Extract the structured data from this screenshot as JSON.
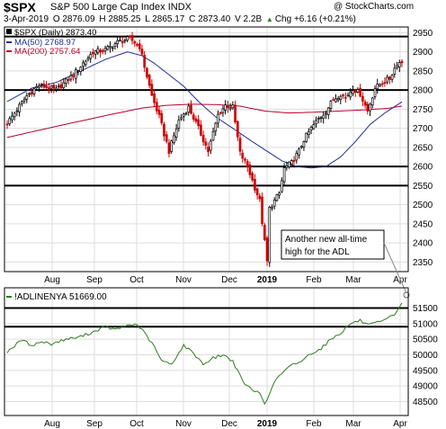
{
  "header": {
    "symbol": "$SPX",
    "description": "S&P 500 Large Cap Index",
    "exchange": "INDX",
    "watermark": "@ StockCharts.com",
    "date": "3-Apr-2019",
    "open": "O 2876.09",
    "high": "H 2885.25",
    "low": "L 2865.17",
    "close": "C 2873.40",
    "volume": "V 2.2B",
    "change": "Chg +6.16 (+0.21%)",
    "change_arrow": "▲"
  },
  "colors": {
    "up": "#000000",
    "down": "#cc0000",
    "ma50": "#1f2f8f",
    "ma200": "#b8002a",
    "adl": "#2e7d1f",
    "panel_border": "#000000",
    "grid": "#dddddd"
  },
  "chart_data": [
    {
      "type": "candlestick",
      "series": [
        {
          "name": "$SPX (Daily) 2873.40"
        },
        {
          "name": "MA(50) 2768.97"
        },
        {
          "name": "MA(200) 2757.64"
        }
      ],
      "ylim": [
        2325,
        2965
      ],
      "y_ticks": [
        2350,
        2400,
        2450,
        2500,
        2550,
        2600,
        2650,
        2700,
        2750,
        2800,
        2850,
        2900,
        2950
      ],
      "x_ticks": [
        "Aug",
        "Sep",
        "Oct",
        "Nov",
        "Dec",
        "2019",
        "Feb",
        "Mar",
        "Apr"
      ],
      "horizontal_lines": [
        2940,
        2800,
        2600,
        2550
      ],
      "annotation": [
        "Another new all-time",
        "high for the ADL"
      ],
      "close_anchors": [
        [
          0,
          2713
        ],
        [
          8,
          2785
        ],
        [
          13,
          2813
        ],
        [
          20,
          2800
        ],
        [
          27,
          2840
        ],
        [
          35,
          2900
        ],
        [
          40,
          2905
        ],
        [
          45,
          2925
        ],
        [
          50,
          2935
        ],
        [
          54,
          2914
        ],
        [
          59,
          2785
        ],
        [
          62,
          2730
        ],
        [
          66,
          2640
        ],
        [
          70,
          2720
        ],
        [
          74,
          2755
        ],
        [
          78,
          2700
        ],
        [
          82,
          2640
        ],
        [
          86,
          2735
        ],
        [
          89,
          2760
        ],
        [
          92,
          2755
        ],
        [
          95,
          2635
        ],
        [
          98,
          2600
        ],
        [
          101,
          2545
        ],
        [
          103,
          2510
        ],
        [
          104,
          2455
        ],
        [
          106,
          2351
        ],
        [
          107,
          2490
        ],
        [
          109,
          2510
        ],
        [
          111,
          2530
        ],
        [
          113,
          2595
        ],
        [
          116,
          2610
        ],
        [
          119,
          2640
        ],
        [
          121,
          2670
        ],
        [
          124,
          2700
        ],
        [
          127,
          2725
        ],
        [
          130,
          2745
        ],
        [
          133,
          2775
        ],
        [
          136,
          2790
        ],
        [
          138,
          2780
        ],
        [
          141,
          2805
        ],
        [
          144,
          2790
        ],
        [
          147,
          2745
        ],
        [
          150,
          2805
        ],
        [
          153,
          2820
        ],
        [
          156,
          2830
        ],
        [
          159,
          2870
        ],
        [
          161,
          2873
        ]
      ],
      "ma50_anchors": [
        [
          0,
          2770
        ],
        [
          10,
          2805
        ],
        [
          20,
          2820
        ],
        [
          30,
          2850
        ],
        [
          40,
          2880
        ],
        [
          49,
          2900
        ],
        [
          55,
          2890
        ],
        [
          60,
          2870
        ],
        [
          66,
          2840
        ],
        [
          72,
          2810
        ],
        [
          78,
          2770
        ],
        [
          85,
          2730
        ],
        [
          92,
          2700
        ],
        [
          100,
          2665
        ],
        [
          106,
          2640
        ],
        [
          112,
          2615
        ],
        [
          118,
          2600
        ],
        [
          124,
          2596
        ],
        [
          130,
          2600
        ],
        [
          136,
          2625
        ],
        [
          142,
          2665
        ],
        [
          148,
          2710
        ],
        [
          154,
          2740
        ],
        [
          161,
          2769
        ]
      ],
      "ma200_anchors": [
        [
          0,
          2676
        ],
        [
          20,
          2705
        ],
        [
          40,
          2733
        ],
        [
          55,
          2753
        ],
        [
          65,
          2760
        ],
        [
          75,
          2763
        ],
        [
          85,
          2762
        ],
        [
          95,
          2758
        ],
        [
          105,
          2745
        ],
        [
          115,
          2740
        ],
        [
          125,
          2742
        ],
        [
          135,
          2745
        ],
        [
          145,
          2748
        ],
        [
          155,
          2752
        ],
        [
          161,
          2758
        ]
      ]
    },
    {
      "type": "line",
      "series": [
        {
          "name": "!ADLINENYA 51669.00"
        }
      ],
      "ylim": [
        48050,
        52150
      ],
      "y_ticks": [
        48500,
        49000,
        49500,
        50000,
        50500,
        51000,
        51500
      ],
      "x_ticks": [
        "Aug",
        "Sep",
        "Oct",
        "Nov",
        "Dec",
        "2019",
        "Feb",
        "Mar",
        "Apr"
      ],
      "horizontal_lines": [
        51500,
        50900
      ],
      "anchors": [
        [
          0,
          50100
        ],
        [
          6,
          50480
        ],
        [
          10,
          50300
        ],
        [
          14,
          50420
        ],
        [
          18,
          50350
        ],
        [
          24,
          50500
        ],
        [
          29,
          50560
        ],
        [
          34,
          50700
        ],
        [
          40,
          50900
        ],
        [
          44,
          50800
        ],
        [
          49,
          50950
        ],
        [
          53,
          50970
        ],
        [
          56,
          50700
        ],
        [
          60,
          50250
        ],
        [
          63,
          49800
        ],
        [
          67,
          49700
        ],
        [
          72,
          50300
        ],
        [
          76,
          50050
        ],
        [
          80,
          49700
        ],
        [
          84,
          49900
        ],
        [
          88,
          50000
        ],
        [
          92,
          49800
        ],
        [
          96,
          49150
        ],
        [
          100,
          48850
        ],
        [
          103,
          48780
        ],
        [
          105,
          48460
        ],
        [
          107,
          48700
        ],
        [
          109,
          49150
        ],
        [
          112,
          49400
        ],
        [
          116,
          49660
        ],
        [
          120,
          49800
        ],
        [
          124,
          50050
        ],
        [
          128,
          50200
        ],
        [
          132,
          50500
        ],
        [
          136,
          50700
        ],
        [
          140,
          51000
        ],
        [
          144,
          51100
        ],
        [
          147,
          50950
        ],
        [
          150,
          51000
        ],
        [
          154,
          51100
        ],
        [
          158,
          51300
        ],
        [
          161,
          51669
        ]
      ]
    }
  ],
  "labels": {
    "y_axis_top": [
      "2350",
      "2400",
      "2450",
      "2500",
      "2550",
      "2600",
      "2650",
      "2700",
      "2750",
      "2800",
      "2850",
      "2900",
      "2950"
    ],
    "y_axis_bottom": [
      "48500",
      "49000",
      "49500",
      "50000",
      "50500",
      "51000",
      "51500"
    ],
    "x_axis": [
      "Aug",
      "Sep",
      "Oct",
      "Nov",
      "Dec",
      "2019",
      "Feb",
      "Mar",
      "Apr"
    ]
  }
}
